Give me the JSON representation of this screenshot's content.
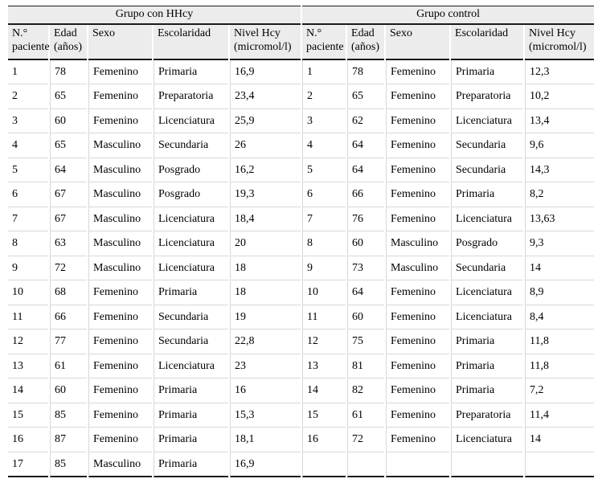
{
  "table": {
    "groups": [
      {
        "title": "Grupo con HHcy"
      },
      {
        "title": "Grupo control"
      }
    ],
    "columns": [
      {
        "line1": "N.°",
        "line2": "paciente"
      },
      {
        "line1": "Edad",
        "line2": "(años)"
      },
      {
        "line1": "Sexo",
        "line2": ""
      },
      {
        "line1": "Escolaridad",
        "line2": ""
      },
      {
        "line1": "Nivel Hcy",
        "line2": "(micromol/l)"
      }
    ],
    "rows": [
      {
        "left": [
          "1",
          "78",
          "Femenino",
          "Primaria",
          "16,9"
        ],
        "right": [
          "1",
          "78",
          "Femenino",
          "Primaria",
          "12,3"
        ]
      },
      {
        "left": [
          "2",
          "65",
          "Femenino",
          "Preparatoria",
          "23,4"
        ],
        "right": [
          "2",
          "65",
          "Femenino",
          "Preparatoria",
          "10,2"
        ]
      },
      {
        "left": [
          "3",
          "60",
          "Femenino",
          "Licenciatura",
          "25,9"
        ],
        "right": [
          "3",
          "62",
          "Femenino",
          "Licenciatura",
          "13,4"
        ]
      },
      {
        "left": [
          "4",
          "65",
          "Masculino",
          "Secundaria",
          "26"
        ],
        "right": [
          "4",
          "64",
          "Femenino",
          "Secundaria",
          "9,6"
        ]
      },
      {
        "left": [
          "5",
          "64",
          "Masculino",
          "Posgrado",
          "16,2"
        ],
        "right": [
          "5",
          "64",
          "Femenino",
          "Secundaria",
          "14,3"
        ]
      },
      {
        "left": [
          "6",
          "67",
          "Masculino",
          "Posgrado",
          "19,3"
        ],
        "right": [
          "6",
          "66",
          "Femenino",
          "Primaria",
          "8,2"
        ]
      },
      {
        "left": [
          "7",
          "67",
          "Masculino",
          "Licenciatura",
          "18,4"
        ],
        "right": [
          "7",
          "76",
          "Femenino",
          "Licenciatura",
          "13,63"
        ]
      },
      {
        "left": [
          "8",
          "63",
          "Masculino",
          "Licenciatura",
          "20"
        ],
        "right": [
          "8",
          "60",
          "Masculino",
          "Posgrado",
          "9,3"
        ]
      },
      {
        "left": [
          "9",
          "72",
          "Masculino",
          "Licenciatura",
          "18"
        ],
        "right": [
          "9",
          "73",
          "Masculino",
          "Secundaria",
          "14"
        ]
      },
      {
        "left": [
          "10",
          "68",
          "Femenino",
          "Primaria",
          "18"
        ],
        "right": [
          "10",
          "64",
          "Femenino",
          "Licenciatura",
          "8,9"
        ]
      },
      {
        "left": [
          "11",
          "66",
          "Femenino",
          "Secundaria",
          "19"
        ],
        "right": [
          "11",
          "60",
          "Femenino",
          "Licenciatura",
          "8,4"
        ]
      },
      {
        "left": [
          "12",
          "77",
          "Femenino",
          "Secundaria",
          "22,8"
        ],
        "right": [
          "12",
          "75",
          "Femenino",
          "Primaria",
          "11,8"
        ]
      },
      {
        "left": [
          "13",
          "61",
          "Femenino",
          "Licenciatura",
          "23"
        ],
        "right": [
          "13",
          "81",
          "Femenino",
          "Primaria",
          "11,8"
        ]
      },
      {
        "left": [
          "14",
          "60",
          "Femenino",
          "Primaria",
          "16"
        ],
        "right": [
          "14",
          "82",
          "Femenino",
          "Primaria",
          "7,2"
        ]
      },
      {
        "left": [
          "15",
          "85",
          "Femenino",
          "Primaria",
          "15,3"
        ],
        "right": [
          "15",
          "61",
          "Femenino",
          "Preparatoria",
          "11,4"
        ]
      },
      {
        "left": [
          "16",
          "87",
          "Femenino",
          "Primaria",
          "18,1"
        ],
        "right": [
          "16",
          "72",
          "Femenino",
          "Licenciatura",
          "14"
        ]
      },
      {
        "left": [
          "17",
          "85",
          "Masculino",
          "Primaria",
          "16,9"
        ],
        "right": [
          "",
          "",
          "",
          "",
          ""
        ]
      }
    ]
  }
}
